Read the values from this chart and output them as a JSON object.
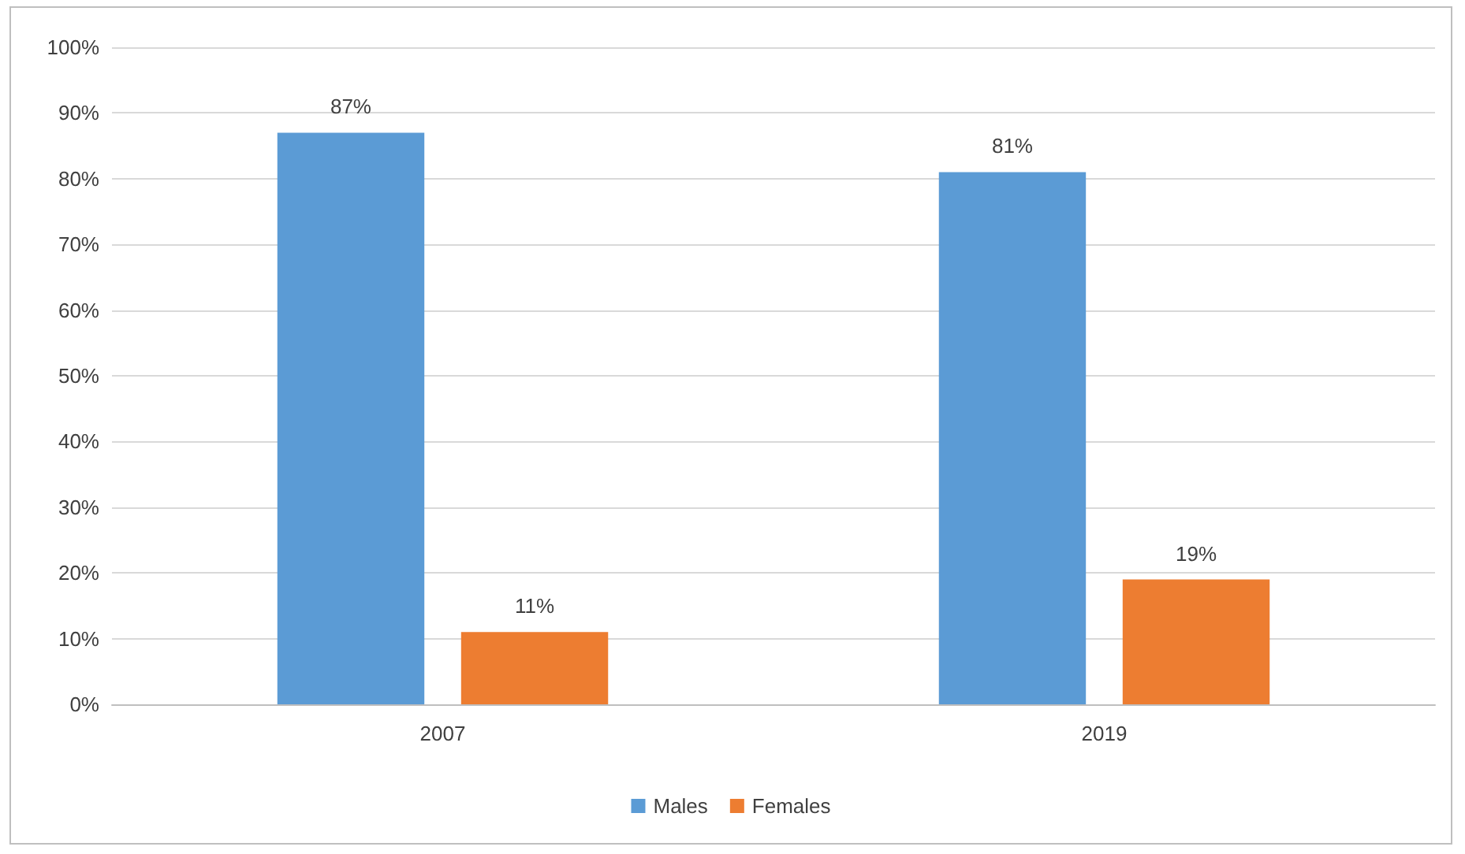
{
  "chart_data": {
    "type": "bar",
    "categories": [
      "2007",
      "2019"
    ],
    "series": [
      {
        "name": "Males",
        "color": "#5b9bd5",
        "values": [
          87,
          81
        ],
        "value_labels": [
          "87%",
          "81%"
        ]
      },
      {
        "name": "Females",
        "color": "#ed7d31",
        "values": [
          11,
          19
        ],
        "value_labels": [
          "11%",
          "19%"
        ]
      }
    ],
    "ylim": [
      0,
      100
    ],
    "yticks": [
      {
        "value": 0,
        "label": "0%"
      },
      {
        "value": 10,
        "label": "10%"
      },
      {
        "value": 20,
        "label": "20%"
      },
      {
        "value": 30,
        "label": "30%"
      },
      {
        "value": 40,
        "label": "40%"
      },
      {
        "value": 50,
        "label": "50%"
      },
      {
        "value": 60,
        "label": "60%"
      },
      {
        "value": 70,
        "label": "70%"
      },
      {
        "value": 80,
        "label": "80%"
      },
      {
        "value": 90,
        "label": "90%"
      },
      {
        "value": 100,
        "label": "100%"
      }
    ],
    "grid": "y",
    "legend": "bottom"
  }
}
